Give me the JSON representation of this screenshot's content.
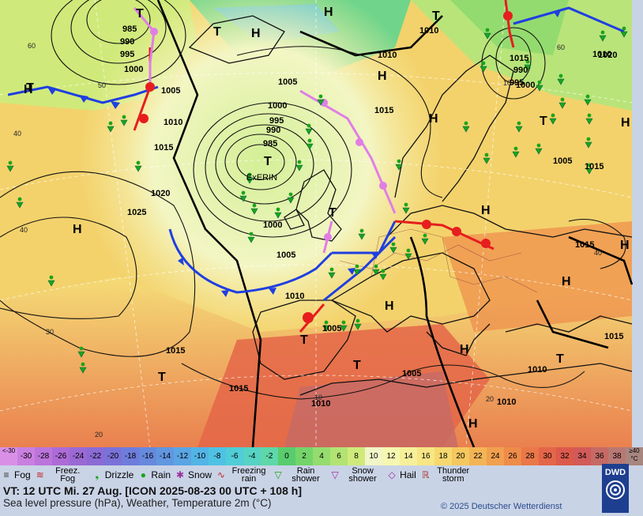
{
  "map": {
    "high_labels": [
      "H",
      "H",
      "H",
      "H",
      "H",
      "H",
      "H",
      "H",
      "H",
      "H",
      "H",
      "H",
      "H"
    ],
    "low_labels": [
      "T",
      "T",
      "T",
      "T",
      "T",
      "T",
      "T",
      "T",
      "T",
      "T",
      "T"
    ],
    "storm_name": "ExERIN",
    "isobar_labels": [
      "985",
      "990",
      "995",
      "1000",
      "1005",
      "1010",
      "1015",
      "1020",
      "1025",
      "1005",
      "1010",
      "1010",
      "1000",
      "985",
      "990",
      "995",
      "1000",
      "1005",
      "1010",
      "1015",
      "1020",
      "1015",
      "1010",
      "1015",
      "1005",
      "1010",
      "1010",
      "1015",
      "1015",
      "1015",
      "1005",
      "1010",
      "1015",
      "990",
      "995",
      "1000",
      "1005"
    ],
    "grid_labels": [
      "60",
      "50",
      "40",
      "40",
      "30",
      "20",
      "60",
      "40",
      "10",
      "20",
      "10"
    ]
  },
  "legend": {
    "temp_scale": [
      {
        "label": "<-30",
        "color": "#d98fe6"
      },
      {
        "label": "-30",
        "color": "#c97fe0"
      },
      {
        "label": "-28",
        "color": "#bb74dc"
      },
      {
        "label": "-26",
        "color": "#ac6bd6"
      },
      {
        "label": "-24",
        "color": "#9a69d4"
      },
      {
        "label": "-22",
        "color": "#8a6bd6"
      },
      {
        "label": "-20",
        "color": "#7a72d8"
      },
      {
        "label": "-18",
        "color": "#6e7ddb"
      },
      {
        "label": "-16",
        "color": "#6689dd"
      },
      {
        "label": "-14",
        "color": "#6196e0"
      },
      {
        "label": "-12",
        "color": "#5aa5e3"
      },
      {
        "label": "-10",
        "color": "#53b4e6"
      },
      {
        "label": "-8",
        "color": "#4fc2e4"
      },
      {
        "label": "-6",
        "color": "#50cdd6"
      },
      {
        "label": "-4",
        "color": "#56d3c3"
      },
      {
        "label": "-2",
        "color": "#5ed7a9"
      },
      {
        "label": "0",
        "color": "#58cc6e"
      },
      {
        "label": "2",
        "color": "#74d46a"
      },
      {
        "label": "4",
        "color": "#95dc6e"
      },
      {
        "label": "6",
        "color": "#b2e373"
      },
      {
        "label": "8",
        "color": "#cfea7a"
      },
      {
        "label": "10",
        "color": "#f1f5c8"
      },
      {
        "label": "12",
        "color": "#f6f7b0"
      },
      {
        "label": "14",
        "color": "#f6f09a"
      },
      {
        "label": "16",
        "color": "#f7e684"
      },
      {
        "label": "18",
        "color": "#f6d86f"
      },
      {
        "label": "20",
        "color": "#f5c75f"
      },
      {
        "label": "22",
        "color": "#f3b455"
      },
      {
        "label": "24",
        "color": "#f1a04e"
      },
      {
        "label": "26",
        "color": "#ee8c4a"
      },
      {
        "label": "28",
        "color": "#ea7848"
      },
      {
        "label": "30",
        "color": "#e46648"
      },
      {
        "label": "32",
        "color": "#dc5a4c"
      },
      {
        "label": "34",
        "color": "#d25a58"
      },
      {
        "label": "36",
        "color": "#c66a66"
      },
      {
        "label": "38",
        "color": "#b87873"
      },
      {
        "label": "≥40 °C",
        "color": "#a88680"
      }
    ],
    "weather_symbols": [
      {
        "label": "Fog",
        "icon": "fog-icon"
      },
      {
        "label": "Freez. Fog",
        "icon": "freezing-fog-icon"
      },
      {
        "label": "Drizzle",
        "icon": "drizzle-icon"
      },
      {
        "label": "Rain",
        "icon": "rain-icon"
      },
      {
        "label": "Snow",
        "icon": "snow-icon"
      },
      {
        "label": "Freezing rain",
        "icon": "freezing-rain-icon"
      },
      {
        "label": "Rain shower",
        "icon": "rain-shower-icon"
      },
      {
        "label": "Snow shower",
        "icon": "snow-shower-icon"
      },
      {
        "label": "Hail",
        "icon": "hail-icon"
      },
      {
        "label": "Thunder storm",
        "icon": "thunderstorm-icon"
      }
    ],
    "valid_time": "VT: 12 UTC Mi.  27 Aug. [ICON 2025-08-23  00 UTC + 108 h]",
    "description": "Sea level pressure (hPa), Weather, Temperature 2m (°C)",
    "copyright": "© 2025 Deutscher Wetterdienst",
    "logo_text": "DWD"
  },
  "colors": {
    "cold_front": "#1f3fe0",
    "warm_front": "#e61e1e",
    "occluded_front": "#e07ee6",
    "rain_symbol": "#1aa51a"
  }
}
